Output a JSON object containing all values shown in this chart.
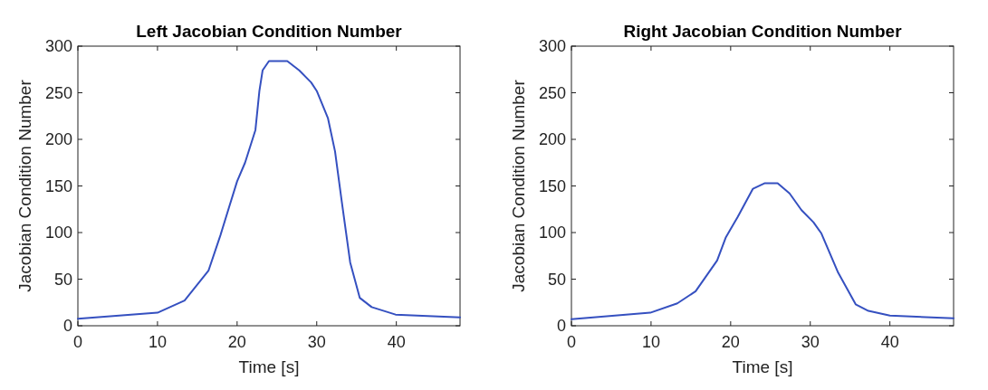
{
  "chart_data": [
    {
      "type": "line",
      "title": "Left Jacobian Condition Number",
      "xlabel": "Time [s]",
      "ylabel": "Jacobian Condition Number",
      "xlim": [
        0,
        48
      ],
      "ylim": [
        0,
        300
      ],
      "xticks": [
        0,
        10,
        20,
        30,
        40
      ],
      "yticks": [
        0,
        50,
        100,
        150,
        200,
        250,
        300
      ],
      "x": [
        0,
        10,
        13.4,
        16.4,
        17.9,
        20,
        21,
        22.3,
        22.8,
        23.2,
        24,
        26.3,
        27.8,
        29.3,
        30,
        31.4,
        32.3,
        33.1,
        34.2,
        35.4,
        36.9,
        39.9,
        48
      ],
      "series": [
        {
          "color": "#3550c0",
          "values": [
            7.5,
            14,
            27,
            59,
            97,
            155,
            175,
            210,
            252,
            274,
            284,
            284,
            274,
            261,
            252,
            223,
            187,
            136,
            68,
            30,
            20,
            12,
            9
          ]
        }
      ]
    },
    {
      "type": "line",
      "title": "Right Jacobian Condition Number",
      "xlabel": "Time [s]",
      "ylabel": "Jacobian Condition Number",
      "xlim": [
        0,
        48
      ],
      "ylim": [
        0,
        300
      ],
      "xticks": [
        0,
        10,
        20,
        30,
        40
      ],
      "yticks": [
        0,
        50,
        100,
        150,
        200,
        250,
        300
      ],
      "x": [
        0,
        9.9,
        13.3,
        15.6,
        18.3,
        19.4,
        20.9,
        22.8,
        24.3,
        25.9,
        27.4,
        28.9,
        30.4,
        31.4,
        33.5,
        35.7,
        37.3,
        40,
        48
      ],
      "series": [
        {
          "color": "#3550c0",
          "values": [
            7,
            14,
            24,
            37,
            70,
            95,
            117,
            147,
            153,
            153,
            142,
            124,
            111,
            99,
            57,
            23,
            16,
            11,
            8
          ]
        }
      ]
    }
  ]
}
